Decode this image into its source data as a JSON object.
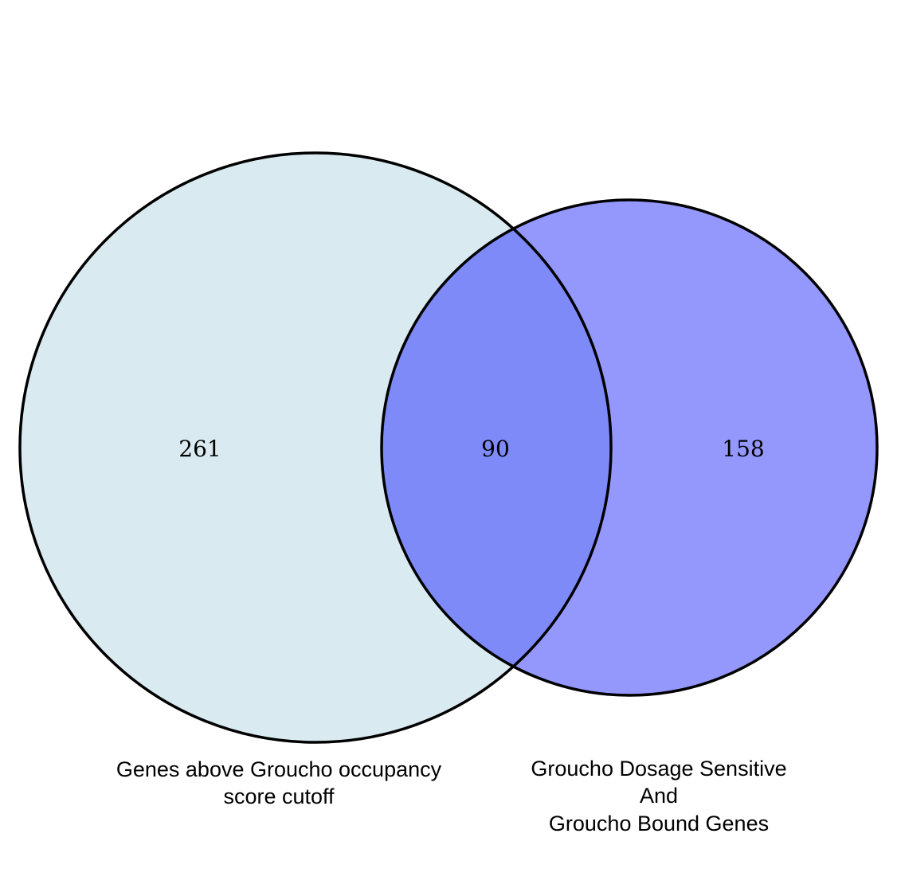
{
  "sets": [
    {
      "id": "A",
      "label_lines": [
        "Genes above Groucho occupancy",
        "score cutoff"
      ],
      "only_count": "261",
      "fill": "#d9ebf1"
    },
    {
      "id": "B",
      "label_lines": [
        "Groucho Dosage Sensitive",
        "And",
        "Groucho Bound Genes"
      ],
      "only_count": "158",
      "fill": "#9498fd"
    }
  ],
  "intersection": {
    "count": "90",
    "fill": "#7d8af7"
  },
  "outline_color": "#000000"
}
